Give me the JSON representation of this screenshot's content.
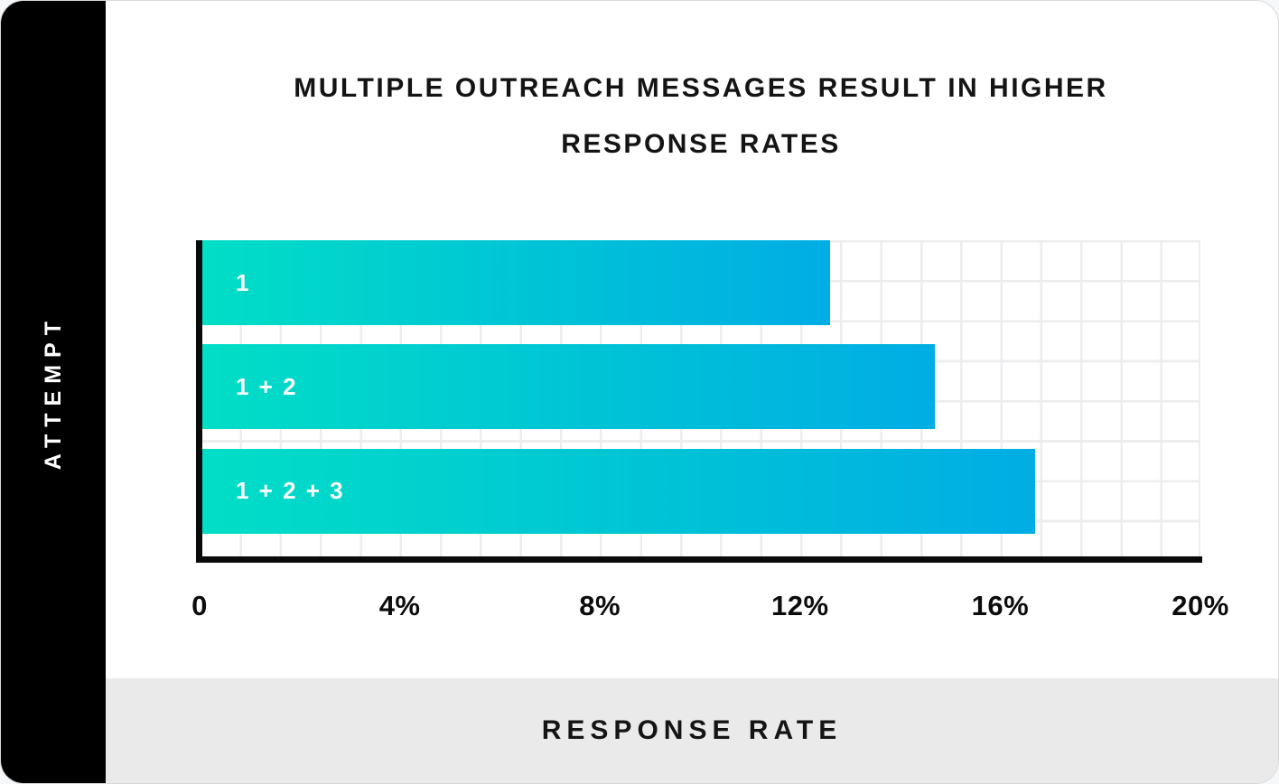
{
  "card": {
    "sidebar": {
      "label": "ATTEMPT"
    },
    "title": {
      "line1": "MULTIPLE OUTREACH MESSAGES RESULT IN HIGHER",
      "line2": "RESPONSE RATES"
    },
    "footer": {
      "label": "RESPONSE RATE"
    }
  },
  "chart_data": {
    "type": "bar",
    "orientation": "horizontal",
    "title": "MULTIPLE OUTREACH MESSAGES RESULT IN HIGHER RESPONSE RATES",
    "categories": [
      "1",
      "1 + 2",
      "1 + 2 + 3"
    ],
    "values": [
      12.6,
      14.7,
      16.7
    ],
    "value_unit": "%",
    "xlabel": "RESPONSE RATE",
    "ylabel": "ATTEMPT",
    "xlim": [
      0,
      20
    ],
    "x_ticks": [
      "0",
      "4%",
      "8%",
      "12%",
      "16%",
      "20%"
    ],
    "grid": true,
    "legend": false,
    "bar_gradient": [
      "#01DEC6",
      "#00ADE4"
    ]
  },
  "colors": {
    "sidebar_bg": "#000000",
    "card_bg": "#FFFFFF",
    "footer_bg": "#EAEAEB",
    "grid_line": "#ECEDEF",
    "axis_line": "#0A0A0A",
    "title_color": "#141414",
    "bar_label_color": "#FFFFFF",
    "bar_gradient_start": "#01DEC6",
    "bar_gradient_end": "#00ADE4"
  }
}
